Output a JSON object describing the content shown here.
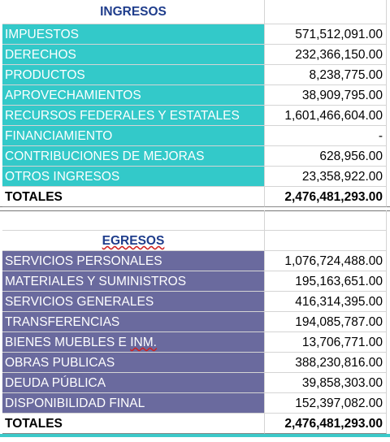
{
  "sections": [
    {
      "title": "INGRESOS",
      "color": "#33c9c9",
      "top": 0,
      "rows": [
        [
          "IMPUESTOS",
          "571,512,091.00"
        ],
        [
          "DERECHOS",
          "232,366,150.00"
        ],
        [
          "PRODUCTOS",
          "8,238,775.00"
        ],
        [
          "APROVECHAMIENTOS",
          "38,909,795.00"
        ],
        [
          "RECURSOS FEDERALES Y ESTATALES",
          "1,601,466,604.00"
        ],
        [
          "FINANCIAMIENTO",
          "-"
        ],
        [
          "CONTRIBUCIONES DE MEJORAS",
          "628,956.00"
        ],
        [
          "OTROS INGRESOS",
          "23,358,922.00"
        ]
      ],
      "total": [
        "TOTALES",
        "2,476,481,293.00"
      ]
    },
    {
      "title": "EGRESOS",
      "color": "#6a6a9e",
      "top": 284,
      "rows": [
        [
          "SERVICIOS PERSONALES",
          "1,076,724,488.00"
        ],
        [
          "MATERIALES Y SUMINISTROS",
          "195,163,651.00"
        ],
        [
          "SERVICIOS GENERALES",
          "416,314,395.00"
        ],
        [
          "TRANSFERENCIAS",
          "194,085,787.00"
        ],
        [
          "BIENES MUEBLES E INM.",
          "13,706,771.00"
        ],
        [
          "OBRAS PUBLICAS",
          "388,230,816.00"
        ],
        [
          "DEUDA PÚBLICA",
          "39,858,303.00"
        ],
        [
          "DISPONIBILIDAD FINAL",
          "152,397,082.00"
        ]
      ],
      "total": [
        "TOTALES",
        "2,476,481,293.00"
      ]
    }
  ]
}
